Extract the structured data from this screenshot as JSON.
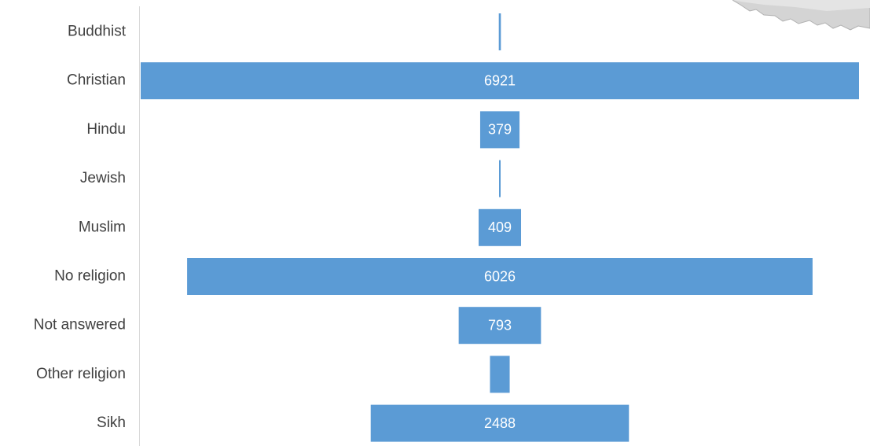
{
  "chart_data": {
    "type": "bar",
    "orientation": "horizontal",
    "style": "funnel",
    "categories": [
      "Buddhist",
      "Christian",
      "Hindu",
      "Jewish",
      "Muslim",
      "No religion",
      "Not answered",
      "Other religion",
      "Sikh"
    ],
    "values": [
      20,
      6921,
      379,
      5,
      409,
      6026,
      793,
      190,
      2488
    ],
    "data_labels": [
      "",
      "6921",
      "379",
      "",
      "409",
      "6026",
      "793",
      "",
      "2488"
    ],
    "bar_color": "#5b9bd5",
    "grid": false,
    "legend": "none"
  }
}
